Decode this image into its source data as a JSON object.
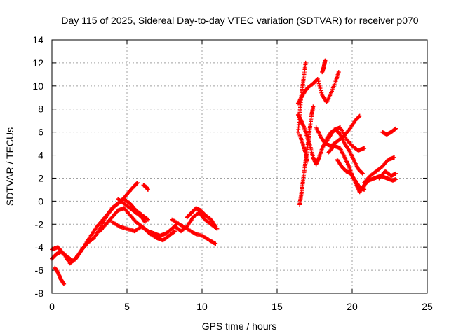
{
  "chart_data": {
    "type": "scatter",
    "title": "Day 115 of 2025, Sidereal Day-to-day VTEC variation (SDTVAR) for receiver p070",
    "xlabel": "GPS time / hours",
    "ylabel": "SDTVAR / TECUs",
    "xlim": [
      0,
      25
    ],
    "ylim": [
      -8,
      14
    ],
    "xticks": [
      "0",
      "5",
      "10",
      "15",
      "20",
      "25"
    ],
    "yticks": [
      "-8",
      "-6",
      "-4",
      "-2",
      "0",
      "2",
      "4",
      "6",
      "8",
      "10",
      "12",
      "14"
    ],
    "grid": true,
    "marker": "plus",
    "color": "#ff0000",
    "series": [
      {
        "tracks": [
          [
            [
              0.0,
              -5.0
            ],
            [
              0.3,
              -4.6
            ],
            [
              0.6,
              -4.4
            ],
            [
              1.0,
              -4.8
            ],
            [
              1.4,
              -5.2
            ],
            [
              1.8,
              -4.6
            ],
            [
              2.2,
              -3.8
            ],
            [
              2.6,
              -3.0
            ],
            [
              3.0,
              -2.2
            ],
            [
              3.4,
              -1.6
            ],
            [
              3.8,
              -1.0
            ],
            [
              4.2,
              -0.4
            ],
            [
              4.6,
              0.0
            ],
            [
              5.0,
              0.6
            ],
            [
              5.4,
              1.2
            ],
            [
              5.7,
              1.6
            ]
          ],
          [
            [
              0.0,
              -4.2
            ],
            [
              0.4,
              -4.0
            ],
            [
              0.8,
              -4.6
            ],
            [
              1.2,
              -5.4
            ],
            [
              1.6,
              -5.0
            ],
            [
              2.0,
              -4.2
            ],
            [
              2.4,
              -3.6
            ],
            [
              2.8,
              -3.2
            ],
            [
              3.2,
              -2.4
            ],
            [
              3.6,
              -1.4
            ],
            [
              4.0,
              -0.6
            ],
            [
              4.4,
              -0.2
            ],
            [
              4.8,
              0.2
            ],
            [
              5.2,
              -0.2
            ],
            [
              5.6,
              -0.8
            ],
            [
              6.0,
              -1.2
            ],
            [
              6.4,
              -1.6
            ]
          ],
          [
            [
              0.2,
              -5.8
            ],
            [
              0.4,
              -6.2
            ],
            [
              0.6,
              -6.8
            ],
            [
              0.8,
              -7.2
            ]
          ],
          [
            [
              3.2,
              -2.6
            ],
            [
              3.6,
              -2.0
            ],
            [
              4.0,
              -1.4
            ],
            [
              4.4,
              -0.8
            ],
            [
              4.8,
              -0.6
            ],
            [
              5.2,
              -1.2
            ],
            [
              5.6,
              -1.8
            ],
            [
              6.0,
              -2.2
            ],
            [
              6.4,
              -2.6
            ],
            [
              6.8,
              -2.8
            ],
            [
              7.2,
              -3.0
            ],
            [
              7.6,
              -2.8
            ],
            [
              8.0,
              -2.4
            ],
            [
              8.3,
              -2.0
            ]
          ],
          [
            [
              4.0,
              -1.8
            ],
            [
              4.5,
              -2.2
            ],
            [
              5.0,
              -2.4
            ],
            [
              5.5,
              -2.6
            ],
            [
              6.0,
              -2.2
            ],
            [
              6.5,
              -2.8
            ],
            [
              7.0,
              -3.2
            ],
            [
              7.4,
              -3.4
            ],
            [
              7.8,
              -3.0
            ],
            [
              8.2,
              -2.6
            ]
          ],
          [
            [
              4.4,
              0.2
            ],
            [
              4.8,
              -0.2
            ],
            [
              5.2,
              -0.6
            ],
            [
              5.6,
              -1.0
            ],
            [
              6.0,
              -1.4
            ],
            [
              6.2,
              -1.8
            ]
          ],
          [
            [
              6.1,
              1.4
            ],
            [
              6.3,
              1.2
            ],
            [
              6.4,
              1.0
            ]
          ],
          [
            [
              8.0,
              -1.6
            ],
            [
              8.5,
              -2.0
            ],
            [
              9.0,
              -2.4
            ],
            [
              9.5,
              -2.8
            ],
            [
              10.0,
              -3.0
            ],
            [
              10.5,
              -3.4
            ],
            [
              10.9,
              -3.7
            ]
          ],
          [
            [
              8.2,
              -2.2
            ],
            [
              8.6,
              -2.6
            ],
            [
              9.0,
              -2.2
            ],
            [
              9.4,
              -1.4
            ],
            [
              9.8,
              -1.0
            ],
            [
              10.2,
              -1.6
            ],
            [
              10.6,
              -2.0
            ],
            [
              11.0,
              -2.4
            ]
          ],
          [
            [
              9.0,
              -1.4
            ],
            [
              9.3,
              -1.0
            ],
            [
              9.6,
              -0.6
            ],
            [
              9.9,
              -0.8
            ],
            [
              10.2,
              -1.2
            ],
            [
              10.6,
              -1.6
            ],
            [
              10.9,
              -2.2
            ]
          ]
        ]
      },
      {
        "tracks": [
          [
            [
              16.5,
              -0.3
            ],
            [
              16.6,
              0.5
            ],
            [
              16.7,
              1.5
            ],
            [
              16.8,
              2.5
            ],
            [
              16.9,
              3.5
            ],
            [
              17.0,
              4.5
            ],
            [
              17.1,
              5.5
            ],
            [
              17.2,
              6.5
            ],
            [
              17.3,
              7.5
            ],
            [
              17.4,
              8.2
            ]
          ],
          [
            [
              16.4,
              6.0
            ],
            [
              16.5,
              7.5
            ],
            [
              16.6,
              9.0
            ],
            [
              16.7,
              10.0
            ],
            [
              16.8,
              11.0
            ],
            [
              16.9,
              12.0
            ]
          ],
          [
            [
              16.4,
              8.5
            ],
            [
              16.7,
              9.2
            ],
            [
              17.0,
              9.8
            ],
            [
              17.4,
              10.2
            ],
            [
              17.7,
              10.6
            ],
            [
              18.0,
              9.2
            ],
            [
              18.3,
              8.6
            ],
            [
              18.6,
              9.4
            ],
            [
              18.9,
              10.4
            ],
            [
              19.1,
              11.2
            ]
          ],
          [
            [
              18.2,
              12.2
            ],
            [
              18.1,
              11.6
            ],
            [
              18.0,
              11.2
            ]
          ],
          [
            [
              16.4,
              7.5
            ],
            [
              16.6,
              7.0
            ],
            [
              16.8,
              6.4
            ],
            [
              17.0,
              5.6
            ],
            [
              17.2,
              4.8
            ],
            [
              17.4,
              3.8
            ],
            [
              17.6,
              3.2
            ],
            [
              17.8,
              3.8
            ],
            [
              18.0,
              4.6
            ],
            [
              18.3,
              5.4
            ],
            [
              18.6,
              6.0
            ],
            [
              18.9,
              6.2
            ],
            [
              19.2,
              5.8
            ],
            [
              19.5,
              5.0
            ],
            [
              19.8,
              4.4
            ],
            [
              20.1,
              3.6
            ],
            [
              20.4,
              2.8
            ],
            [
              20.7,
              2.4
            ]
          ],
          [
            [
              16.5,
              5.8
            ],
            [
              16.7,
              5.0
            ],
            [
              16.9,
              4.2
            ],
            [
              17.0,
              3.4
            ]
          ],
          [
            [
              17.6,
              6.4
            ],
            [
              17.9,
              5.6
            ],
            [
              18.2,
              5.0
            ],
            [
              18.6,
              4.8
            ],
            [
              19.0,
              5.2
            ],
            [
              19.4,
              5.6
            ],
            [
              19.8,
              6.2
            ],
            [
              20.2,
              7.0
            ],
            [
              20.5,
              7.4
            ]
          ],
          [
            [
              18.0,
              4.6
            ],
            [
              18.4,
              5.4
            ],
            [
              18.8,
              6.2
            ],
            [
              19.2,
              6.4
            ],
            [
              19.6,
              5.4
            ],
            [
              20.0,
              4.8
            ],
            [
              20.4,
              4.4
            ],
            [
              20.8,
              4.6
            ]
          ],
          [
            [
              18.4,
              4.2
            ],
            [
              18.8,
              4.8
            ],
            [
              19.2,
              4.6
            ],
            [
              19.5,
              3.8
            ],
            [
              19.8,
              3.0
            ],
            [
              20.0,
              2.2
            ],
            [
              20.3,
              1.4
            ],
            [
              20.5,
              0.8
            ],
            [
              20.8,
              1.4
            ],
            [
              21.1,
              1.8
            ],
            [
              21.5,
              2.0
            ],
            [
              21.9,
              2.2
            ],
            [
              22.3,
              2.0
            ],
            [
              22.7,
              1.8
            ],
            [
              22.9,
              1.9
            ]
          ],
          [
            [
              19.0,
              3.6
            ],
            [
              19.3,
              3.0
            ],
            [
              19.6,
              2.6
            ],
            [
              19.9,
              2.4
            ],
            [
              20.2,
              1.8
            ],
            [
              20.5,
              1.2
            ],
            [
              20.8,
              1.0
            ]
          ],
          [
            [
              20.8,
              1.6
            ],
            [
              21.2,
              2.2
            ],
            [
              21.6,
              2.6
            ],
            [
              22.0,
              3.0
            ],
            [
              22.4,
              3.6
            ],
            [
              22.8,
              3.8
            ]
          ],
          [
            [
              22.0,
              6.0
            ],
            [
              22.3,
              5.8
            ],
            [
              22.6,
              6.0
            ],
            [
              22.9,
              6.3
            ]
          ],
          [
            [
              21.8,
              2.0
            ],
            [
              22.2,
              2.6
            ],
            [
              22.6,
              2.2
            ],
            [
              22.9,
              2.4
            ]
          ]
        ]
      }
    ]
  }
}
